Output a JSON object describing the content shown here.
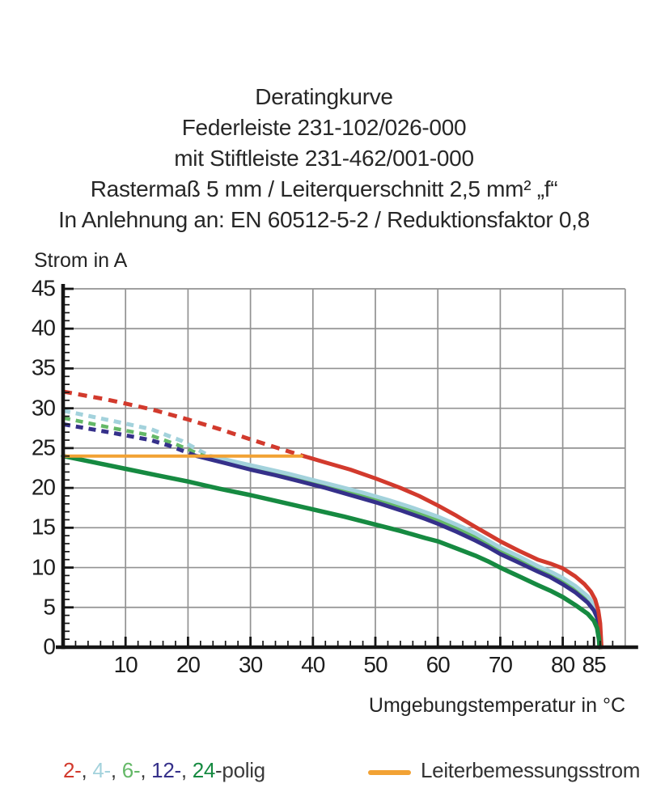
{
  "title": {
    "lines": [
      "Deratingkurve",
      "Federleiste 231-102/026-000",
      "mit Stiftleiste 231-462/001-000",
      "Rastermaß 5 mm / Leiterquerschnitt 2,5 mm² „f“",
      "In Anlehnung an: EN 60512-5-2 / Reduktionsfaktor 0,8"
    ]
  },
  "chart_data": {
    "type": "line",
    "title": "Deratingkurve",
    "xlabel": "Umgebungstemperatur in °C",
    "ylabel": "Strom in A",
    "xlim": [
      0,
      90
    ],
    "ylim": [
      0,
      45
    ],
    "grid": {
      "x_lines": [
        10,
        20,
        30,
        40,
        50,
        60,
        70,
        80,
        90
      ],
      "y_lines": [
        5,
        10,
        15,
        20,
        25,
        30,
        35,
        40,
        45
      ],
      "color": "#929292"
    },
    "x_major_ticks": [
      10,
      20,
      30,
      40,
      50,
      60,
      70,
      80,
      85
    ],
    "x_minor_tick_step": 2,
    "y_major_ticks": [
      0,
      5,
      10,
      15,
      20,
      25,
      30,
      35,
      40,
      45
    ],
    "y_minor_tick_step": 1,
    "axis_color": "#151515",
    "series": [
      {
        "name": "2-polig",
        "color": "#d23a2d",
        "width": 5,
        "dash": "11 8",
        "dashed_points": [
          [
            0,
            32.1
          ],
          [
            7,
            31.1
          ],
          [
            14,
            29.9
          ],
          [
            20,
            28.6
          ],
          [
            25,
            27.4
          ],
          [
            30,
            26.1
          ],
          [
            34,
            25.1
          ],
          [
            38.5,
            24
          ]
        ],
        "solid_points": [
          [
            38.5,
            24
          ],
          [
            42,
            23.2
          ],
          [
            46,
            22.3
          ],
          [
            50,
            21.2
          ],
          [
            54,
            20
          ],
          [
            57,
            19
          ],
          [
            60,
            17.8
          ],
          [
            63,
            16.5
          ],
          [
            66,
            15.1
          ],
          [
            68,
            14.2
          ],
          [
            70,
            13.3
          ],
          [
            73,
            12.1
          ],
          [
            76,
            11
          ],
          [
            78,
            10.5
          ],
          [
            80,
            9.9
          ],
          [
            82,
            8.9
          ],
          [
            83.5,
            7.9
          ],
          [
            84.5,
            7
          ],
          [
            85.2,
            6
          ],
          [
            85.7,
            4.6
          ],
          [
            86,
            3
          ],
          [
            86.2,
            0
          ]
        ]
      },
      {
        "name": "4-polig",
        "color": "#a3d2dc",
        "width": 5,
        "dash": "9 7",
        "dashed_points": [
          [
            0,
            29.7
          ],
          [
            8,
            28.4
          ],
          [
            14,
            27.4
          ],
          [
            19,
            25.9
          ],
          [
            23,
            24.2
          ],
          [
            23.6,
            24
          ]
        ],
        "solid_points": [
          [
            23.6,
            24
          ],
          [
            28,
            23.2
          ],
          [
            32,
            22.5
          ],
          [
            36,
            21.8
          ],
          [
            40,
            21
          ],
          [
            44,
            20.2
          ],
          [
            48,
            19.4
          ],
          [
            52,
            18.5
          ],
          [
            56,
            17.5
          ],
          [
            60,
            16.4
          ],
          [
            63,
            15.4
          ],
          [
            66,
            14.3
          ],
          [
            68,
            13.4
          ],
          [
            70,
            12.5
          ],
          [
            73,
            11.4
          ],
          [
            76,
            10.2
          ],
          [
            78,
            9.5
          ],
          [
            80,
            8.7
          ],
          [
            82,
            7.7
          ],
          [
            84,
            6.4
          ],
          [
            85,
            5.4
          ],
          [
            85.5,
            4.4
          ],
          [
            85.9,
            3
          ],
          [
            86.1,
            0
          ]
        ]
      },
      {
        "name": "6-polig",
        "color": "#64b867",
        "width": 4.5,
        "dash": "9 7",
        "dashed_points": [
          [
            0,
            28.8
          ],
          [
            8,
            27.5
          ],
          [
            14,
            26.6
          ],
          [
            18,
            25.5
          ],
          [
            22,
            24.2
          ],
          [
            22.6,
            24
          ]
        ],
        "solid_points": [
          [
            22.6,
            24
          ],
          [
            27,
            23.1
          ],
          [
            32,
            22.2
          ],
          [
            36,
            21.5
          ],
          [
            40,
            20.7
          ],
          [
            44,
            19.9
          ],
          [
            48,
            19
          ],
          [
            52,
            18.1
          ],
          [
            56,
            17.1
          ],
          [
            60,
            16
          ],
          [
            63,
            15
          ],
          [
            66,
            13.9
          ],
          [
            68,
            13
          ],
          [
            70,
            12.1
          ],
          [
            73,
            11
          ],
          [
            76,
            9.9
          ],
          [
            78,
            9.2
          ],
          [
            80,
            8.3
          ],
          [
            82,
            7.3
          ],
          [
            84,
            6
          ],
          [
            85,
            5
          ],
          [
            85.5,
            4
          ],
          [
            85.9,
            2.5
          ],
          [
            86.1,
            0
          ]
        ]
      },
      {
        "name": "12-polig",
        "color": "#35308a",
        "width": 5,
        "dash": "9 7",
        "dashed_points": [
          [
            0,
            28
          ],
          [
            8,
            26.9
          ],
          [
            14,
            26
          ],
          [
            17,
            25.3
          ],
          [
            21,
            24.1
          ],
          [
            21.4,
            24
          ]
        ],
        "solid_points": [
          [
            21.4,
            24
          ],
          [
            26,
            23.1
          ],
          [
            30,
            22.3
          ],
          [
            34,
            21.6
          ],
          [
            38,
            20.8
          ],
          [
            42,
            20
          ],
          [
            46,
            19.1
          ],
          [
            50,
            18.2
          ],
          [
            54,
            17.2
          ],
          [
            58,
            16.1
          ],
          [
            60,
            15.5
          ],
          [
            63,
            14.5
          ],
          [
            66,
            13.4
          ],
          [
            68,
            12.6
          ],
          [
            70,
            11.7
          ],
          [
            73,
            10.6
          ],
          [
            76,
            9.5
          ],
          [
            78,
            8.8
          ],
          [
            80,
            7.9
          ],
          [
            82,
            6.9
          ],
          [
            84,
            5.6
          ],
          [
            85,
            4.6
          ],
          [
            85.5,
            3.7
          ],
          [
            85.9,
            2
          ],
          [
            86,
            0
          ]
        ]
      },
      {
        "name": "24-polig",
        "color": "#168a41",
        "width": 5.5,
        "dash": null,
        "dashed_points": null,
        "solid_points": [
          [
            0,
            24
          ],
          [
            5,
            23.2
          ],
          [
            10,
            22.4
          ],
          [
            15,
            21.6
          ],
          [
            20,
            20.8
          ],
          [
            25,
            19.9
          ],
          [
            30,
            19.1
          ],
          [
            35,
            18.2
          ],
          [
            40,
            17.3
          ],
          [
            45,
            16.4
          ],
          [
            50,
            15.4
          ],
          [
            54,
            14.6
          ],
          [
            58,
            13.7
          ],
          [
            60,
            13.3
          ],
          [
            63,
            12.4
          ],
          [
            66,
            11.5
          ],
          [
            68,
            10.8
          ],
          [
            70,
            10
          ],
          [
            73,
            8.9
          ],
          [
            76,
            7.8
          ],
          [
            78,
            7.1
          ],
          [
            80,
            6.3
          ],
          [
            82,
            5.3
          ],
          [
            84,
            4.2
          ],
          [
            85,
            3.3
          ],
          [
            85.5,
            2.4
          ],
          [
            85.8,
            1
          ],
          [
            85.9,
            0
          ]
        ]
      }
    ],
    "reference_line": {
      "name": "Leiterbemessungsstrom",
      "color": "#f2a234",
      "width": 4,
      "y": 24,
      "x_start": 0,
      "x_end": 38.2
    },
    "legend_position": "bottom"
  },
  "legend": {
    "pole_items": [
      {
        "label": "2-",
        "color": "#d23a2d"
      },
      {
        "label": "4-",
        "color": "#a3d2dc"
      },
      {
        "label": "6-",
        "color": "#64b867"
      },
      {
        "label": "12-",
        "color": "#35308a"
      },
      {
        "label": "24",
        "color": "#168a41"
      }
    ],
    "separator": ", ",
    "suffix": "-polig",
    "suffix_color": "#3b3b3b",
    "reference_label": "Leiterbemessungsstrom",
    "reference_color": "#f2a234"
  },
  "axis_labels": {
    "y": "Strom in A",
    "x": "Umgebungstemperatur in °C"
  }
}
